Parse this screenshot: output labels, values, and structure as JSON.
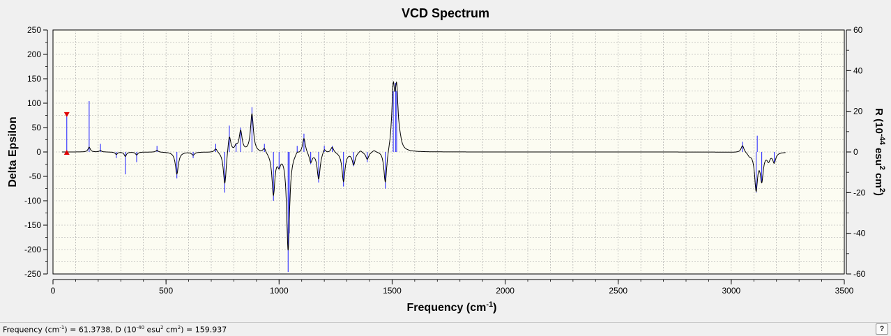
{
  "chart_data": {
    "type": "line",
    "title": "VCD Spectrum",
    "xlabel": "Frequency (cm",
    "xlabel_sup": "-1",
    "xlabel_end": ")",
    "ylabel_left": "Delta Epsilon",
    "ylabel_right": "R (10",
    "ylabel_right_sup1": "-44",
    "ylabel_right_mid": " esu",
    "ylabel_right_sup2": "2",
    "ylabel_right_mid2": " cm",
    "ylabel_right_sup3": "2",
    "ylabel_right_end": ")",
    "xlim": [
      0,
      3500
    ],
    "ylim_left": [
      -250,
      250
    ],
    "ylim_right": [
      -60,
      60
    ],
    "x_ticks": [
      0,
      500,
      1000,
      1500,
      2000,
      2500,
      3000,
      3500
    ],
    "y_left_ticks": [
      250,
      200,
      150,
      100,
      50,
      0,
      -50,
      -100,
      -150,
      -200,
      -250
    ],
    "y_right_ticks": [
      60,
      40,
      20,
      0,
      -20,
      -40,
      -60
    ],
    "grid": true,
    "colors": {
      "background": "#fcfcf2",
      "grid": "#a0a0a0",
      "spectrum": "#000000",
      "sticks": "#1a1aff",
      "marker": "#e00000"
    },
    "series": [
      {
        "kind": "spectrum",
        "peaks": [
          [
            160,
            10,
            6
          ],
          [
            210,
            3,
            6
          ],
          [
            280,
            -5,
            6
          ],
          [
            320,
            -9,
            6
          ],
          [
            370,
            -6,
            6
          ],
          [
            460,
            4,
            6
          ],
          [
            548,
            -45,
            8
          ],
          [
            620,
            -6,
            8
          ],
          [
            720,
            8,
            8
          ],
          [
            760,
            -70,
            8
          ],
          [
            780,
            38,
            8
          ],
          [
            810,
            10,
            8
          ],
          [
            830,
            42,
            8
          ],
          [
            880,
            78,
            8
          ],
          [
            935,
            10,
            8
          ],
          [
            975,
            -85,
            8
          ],
          [
            1000,
            -20,
            8
          ],
          [
            1040,
            -200,
            8
          ],
          [
            1080,
            6,
            8
          ],
          [
            1110,
            32,
            8
          ],
          [
            1140,
            -20,
            8
          ],
          [
            1175,
            -55,
            8
          ],
          [
            1200,
            10,
            8
          ],
          [
            1235,
            12,
            8
          ],
          [
            1285,
            -60,
            8
          ],
          [
            1330,
            -25,
            8
          ],
          [
            1360,
            5,
            8
          ],
          [
            1390,
            -15,
            8
          ],
          [
            1420,
            4,
            8
          ],
          [
            1470,
            -70,
            8
          ],
          [
            1505,
            120,
            8
          ],
          [
            1520,
            115,
            8
          ],
          [
            1535,
            10,
            8
          ],
          [
            3050,
            15,
            8
          ],
          [
            3080,
            -5,
            8
          ],
          [
            3110,
            -75,
            8
          ],
          [
            3135,
            -55,
            8
          ],
          [
            3165,
            -15,
            8
          ],
          [
            3190,
            -20,
            8
          ]
        ]
      },
      {
        "kind": "sticks",
        "values": [
          [
            61,
            18.2
          ],
          [
            160,
            25
          ],
          [
            210,
            4
          ],
          [
            280,
            -3
          ],
          [
            320,
            -11
          ],
          [
            370,
            -5
          ],
          [
            460,
            3
          ],
          [
            548,
            -13
          ],
          [
            620,
            -3
          ],
          [
            720,
            4
          ],
          [
            760,
            -20
          ],
          [
            780,
            13
          ],
          [
            810,
            4
          ],
          [
            830,
            12
          ],
          [
            880,
            22
          ],
          [
            935,
            4
          ],
          [
            975,
            -24
          ],
          [
            1000,
            -8
          ],
          [
            1040,
            -59
          ],
          [
            1045,
            -40
          ],
          [
            1080,
            3
          ],
          [
            1110,
            9
          ],
          [
            1140,
            -6
          ],
          [
            1175,
            -15
          ],
          [
            1200,
            3
          ],
          [
            1235,
            3
          ],
          [
            1285,
            -17
          ],
          [
            1330,
            -7
          ],
          [
            1390,
            -5
          ],
          [
            1470,
            -18
          ],
          [
            1505,
            30
          ],
          [
            1515,
            34
          ],
          [
            1520,
            30
          ],
          [
            3050,
            5
          ],
          [
            3110,
            -20
          ],
          [
            3115,
            8
          ],
          [
            3135,
            -15
          ],
          [
            3190,
            -5
          ]
        ]
      }
    ],
    "marker": {
      "x": 61,
      "y_right": 18.2
    }
  },
  "status": {
    "text_a": "Frequency (cm",
    "sup_a": "-1",
    "text_b": ") = 61.3738, D (10",
    "sup_b": "-40",
    "text_c": " esu",
    "sup_c": "2",
    "text_d": " cm",
    "sup_d": "2",
    "text_e": ") = 159.937",
    "help_label": "?"
  }
}
